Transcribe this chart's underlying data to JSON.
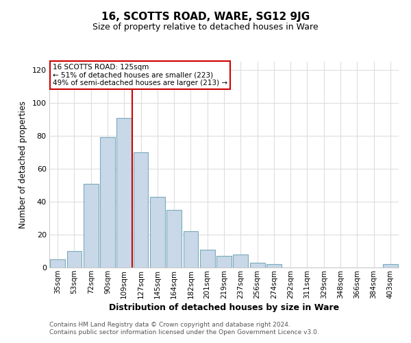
{
  "title": "16, SCOTTS ROAD, WARE, SG12 9JG",
  "subtitle": "Size of property relative to detached houses in Ware",
  "xlabel": "Distribution of detached houses by size in Ware",
  "ylabel": "Number of detached properties",
  "bar_color": "#c8d8e8",
  "bar_edge_color": "#7aaabb",
  "vline_color": "#cc0000",
  "vline_index": 5,
  "categories": [
    "35sqm",
    "53sqm",
    "72sqm",
    "90sqm",
    "109sqm",
    "127sqm",
    "145sqm",
    "164sqm",
    "182sqm",
    "201sqm",
    "219sqm",
    "237sqm",
    "256sqm",
    "274sqm",
    "292sqm",
    "311sqm",
    "329sqm",
    "348sqm",
    "366sqm",
    "384sqm",
    "403sqm"
  ],
  "values": [
    5,
    10,
    51,
    79,
    91,
    70,
    43,
    35,
    22,
    11,
    7,
    8,
    3,
    2,
    0,
    0,
    0,
    0,
    0,
    0,
    2
  ],
  "ylim": [
    0,
    125
  ],
  "yticks": [
    0,
    20,
    40,
    60,
    80,
    100,
    120
  ],
  "annotation_title": "16 SCOTTS ROAD: 125sqm",
  "annotation_line1": "← 51% of detached houses are smaller (223)",
  "annotation_line2": "49% of semi-detached houses are larger (213) →",
  "box_color": "#ffffff",
  "box_edge_color": "#cc0000",
  "footer_line1": "Contains HM Land Registry data © Crown copyright and database right 2024.",
  "footer_line2": "Contains public sector information licensed under the Open Government Licence v3.0.",
  "background_color": "#ffffff",
  "grid_color": "#dddddd"
}
